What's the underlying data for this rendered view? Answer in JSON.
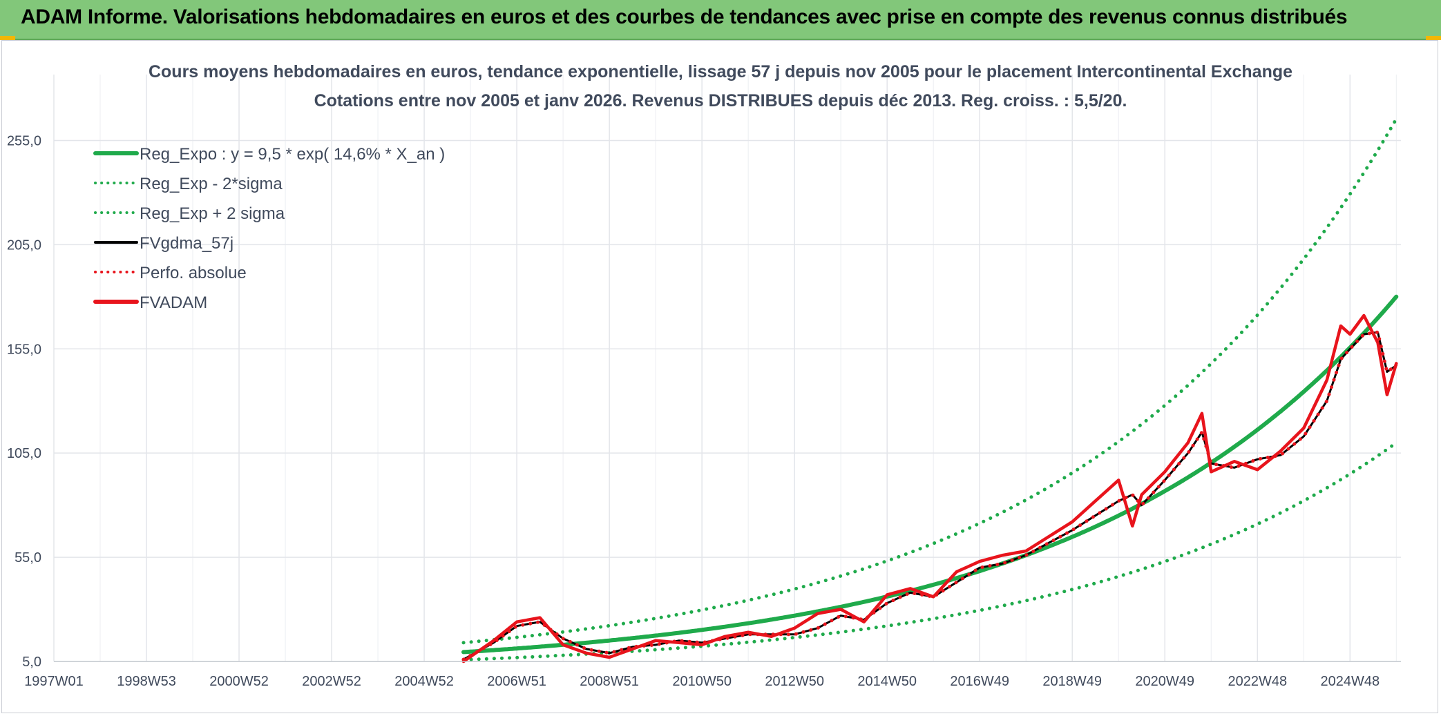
{
  "header": {
    "title": "ADAM Informe. Valorisations hebdomadaires en euros et des courbes de tendances avec prise en compte des revenus connus distribués"
  },
  "chart_data": {
    "type": "line",
    "title_line1": "Cours moyens hebdomadaires en euros, tendance exponentielle, lissage 57 j depuis nov 2005 pour le placement Intercontinental Exchange",
    "title_line2": "Cotations entre nov 2005 et janv 2026. Revenus DISTRIBUES depuis déc 2013. Reg. croiss. : 5,5/20.",
    "x_ticks": [
      "1997W01",
      "1998W53",
      "2000W52",
      "2002W52",
      "2004W52",
      "2006W51",
      "2008W51",
      "2010W50",
      "2012W50",
      "2014W50",
      "2016W49",
      "2018W49",
      "2020W49",
      "2022W48",
      "2024W48"
    ],
    "y_ticks": [
      "5,0",
      "55,0",
      "105,0",
      "155,0",
      "205,0",
      "255,0"
    ],
    "ylim": [
      5,
      280
    ],
    "x_range": [
      1997.0,
      2026.1
    ],
    "grid": true,
    "legend_position": "top-left",
    "x_years": [
      2005.85,
      2006.5,
      2007.0,
      2007.5,
      2008.0,
      2008.5,
      2009.0,
      2009.5,
      2010.0,
      2010.5,
      2011.0,
      2011.5,
      2012.0,
      2012.5,
      2013.0,
      2013.5,
      2014.0,
      2014.5,
      2015.0,
      2015.5,
      2016.0,
      2016.5,
      2017.0,
      2017.5,
      2018.0,
      2018.5,
      2019.0,
      2019.5,
      2020.0,
      2020.3,
      2020.5,
      2021.0,
      2021.5,
      2021.8,
      2022.0,
      2022.5,
      2023.0,
      2023.5,
      2024.0,
      2024.5,
      2024.8,
      2025.0,
      2025.3,
      2025.6,
      2025.8,
      2026.0
    ],
    "series": [
      {
        "name": "Reg_Expo : y = 9,5 * exp( 14,6% *  X_an )",
        "color": "#1faa4b",
        "style": "solid",
        "formula": {
          "a": 9.5,
          "r": 0.146,
          "x0": 2005.85
        }
      },
      {
        "name": "Reg_Exp - 2*sigma",
        "color": "#1faa4b",
        "style": "dotted",
        "formula": {
          "a": 5.8,
          "r": 0.146,
          "x0": 2005.85
        }
      },
      {
        "name": "Reg_Exp + 2 sigma",
        "color": "#1faa4b",
        "style": "dotted",
        "formula": {
          "a": 14.0,
          "r": 0.146,
          "x0": 2005.85
        }
      },
      {
        "name": "FVgdma_57j",
        "color": "#000000",
        "style": "solid",
        "values": [
          6,
          14,
          22,
          24,
          16,
          11,
          9,
          12,
          13,
          15,
          14,
          16,
          18,
          18,
          18,
          21,
          27,
          25,
          33,
          38,
          36,
          43,
          50,
          52,
          56,
          62,
          68,
          75,
          82,
          85,
          80,
          92,
          105,
          115,
          100,
          98,
          102,
          104,
          113,
          130,
          150,
          155,
          162,
          163,
          144,
          147
        ]
      },
      {
        "name": "Perfo. absolue",
        "color": "#e8141c",
        "style": "dotted",
        "values": [
          6,
          14,
          22,
          24,
          16,
          11,
          9,
          12,
          13,
          15,
          14,
          16,
          18,
          18,
          18,
          21,
          27,
          25,
          33,
          38,
          36,
          43,
          50,
          52,
          56,
          62,
          68,
          75,
          82,
          85,
          80,
          92,
          105,
          115,
          100,
          98,
          102,
          104,
          113,
          130,
          150,
          155,
          162,
          163,
          144,
          147
        ]
      },
      {
        "name": "FVADAM",
        "color": "#e8141c",
        "style": "solid",
        "values": [
          5,
          15,
          24,
          26,
          13,
          9,
          7,
          11,
          15,
          14,
          13,
          17,
          19,
          17,
          21,
          28,
          30,
          24,
          37,
          40,
          36,
          48,
          53,
          56,
          58,
          65,
          72,
          82,
          92,
          70,
          85,
          96,
          110,
          124,
          96,
          101,
          97,
          106,
          117,
          140,
          166,
          162,
          171,
          158,
          133,
          148
        ]
      }
    ]
  }
}
